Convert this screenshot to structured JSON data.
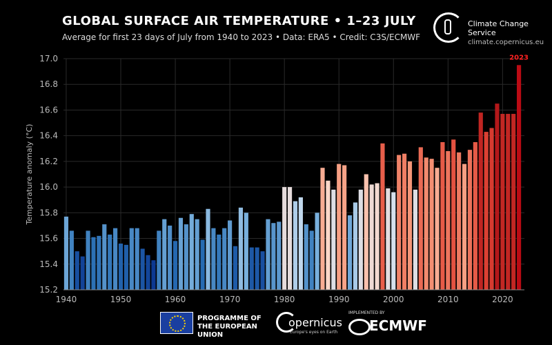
{
  "header": {
    "title": "GLOBAL SURFACE AIR TEMPERATURE • 1–23 JULY",
    "subtitle": "Average for first 23 days of July from 1940 to 2023 • Data: ERA5 • Credit: C3S/ECMWF",
    "brand_name": "Climate Change Service",
    "url": "climate.copernicus.eu"
  },
  "footer": {
    "eu_text": "PROGRAMME OF THE EUROPEAN UNION",
    "copernicus_name": "opernicus",
    "copernicus_tagline": "Europe's eyes on Earth",
    "implemented_by": "IMPLEMENTED BY",
    "ecmwf_name": "ECMWF"
  },
  "chart_data": {
    "type": "bar",
    "title": "GLOBAL SURFACE AIR TEMPERATURE • 1–23 JULY",
    "ylabel": "Temperature anomaly (°C)",
    "xlabel": "",
    "ylim": [
      15.2,
      17.0
    ],
    "xlim": [
      1939.5,
      2024
    ],
    "yticks": [
      15.2,
      15.4,
      15.6,
      15.8,
      16.0,
      16.2,
      16.4,
      16.6,
      16.8,
      17.0
    ],
    "xticks": [
      1940,
      1950,
      1960,
      1970,
      1980,
      1990,
      2000,
      2010,
      2020
    ],
    "grid": true,
    "highlight": {
      "year": 2023,
      "label": "2023",
      "color": "#ff2020"
    },
    "color_scale": "blue (cool) to red (warm) diverging",
    "x": [
      1940,
      1941,
      1942,
      1943,
      1944,
      1945,
      1946,
      1947,
      1948,
      1949,
      1950,
      1951,
      1952,
      1953,
      1954,
      1955,
      1956,
      1957,
      1958,
      1959,
      1960,
      1961,
      1962,
      1963,
      1964,
      1965,
      1966,
      1967,
      1968,
      1969,
      1970,
      1971,
      1972,
      1973,
      1974,
      1975,
      1976,
      1977,
      1978,
      1979,
      1980,
      1981,
      1982,
      1983,
      1984,
      1985,
      1986,
      1987,
      1988,
      1989,
      1990,
      1991,
      1992,
      1993,
      1994,
      1995,
      1996,
      1997,
      1998,
      1999,
      2000,
      2001,
      2002,
      2003,
      2004,
      2005,
      2006,
      2007,
      2008,
      2009,
      2010,
      2011,
      2012,
      2013,
      2014,
      2015,
      2016,
      2017,
      2018,
      2019,
      2020,
      2021,
      2022,
      2023
    ],
    "values": [
      15.77,
      15.66,
      15.5,
      15.46,
      15.66,
      15.61,
      15.62,
      15.71,
      15.63,
      15.68,
      15.56,
      15.55,
      15.68,
      15.68,
      15.52,
      15.47,
      15.43,
      15.66,
      15.75,
      15.7,
      15.58,
      15.76,
      15.71,
      15.79,
      15.75,
      15.59,
      15.83,
      15.68,
      15.63,
      15.68,
      15.74,
      15.54,
      15.84,
      15.8,
      15.53,
      15.53,
      15.5,
      15.75,
      15.72,
      15.73,
      16.0,
      16.0,
      15.89,
      15.92,
      15.71,
      15.66,
      15.8,
      16.15,
      16.05,
      15.98,
      16.18,
      16.17,
      15.78,
      15.88,
      15.98,
      16.1,
      16.02,
      16.03,
      16.34,
      15.99,
      15.96,
      16.25,
      16.26,
      16.2,
      15.98,
      16.31,
      16.23,
      16.22,
      16.15,
      16.35,
      16.28,
      16.37,
      16.27,
      16.18,
      16.29,
      16.35,
      16.58,
      16.43,
      16.46,
      16.65,
      16.57,
      16.57,
      16.57,
      16.95
    ]
  }
}
